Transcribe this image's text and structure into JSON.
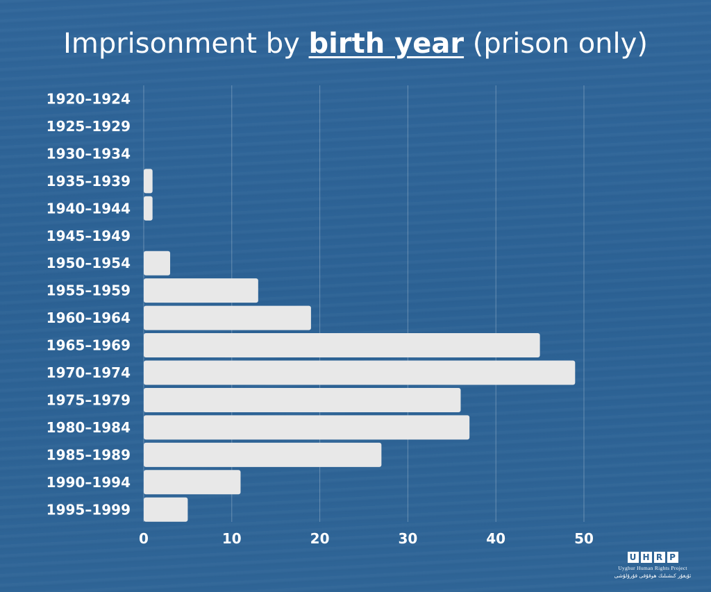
{
  "title": {
    "before": "Imprisonment by ",
    "emphasis": "birth year",
    "after": " (prison only)"
  },
  "chart_data": {
    "type": "bar",
    "orientation": "horizontal",
    "categories": [
      "1920–1924",
      "1925–1929",
      "1930–1934",
      "1935–1939",
      "1940–1944",
      "1945–1949",
      "1950–1954",
      "1955–1959",
      "1960–1964",
      "1965–1969",
      "1970–1974",
      "1975–1979",
      "1980–1984",
      "1985–1989",
      "1990–1994",
      "1995–1999"
    ],
    "values": [
      0,
      0,
      0,
      1,
      1,
      0,
      3,
      13,
      19,
      45,
      49,
      36,
      37,
      27,
      11,
      5
    ],
    "xlim": [
      0,
      50
    ],
    "xticks": [
      "0",
      "10",
      "20",
      "30",
      "40",
      "50"
    ],
    "xlabel": "",
    "ylabel": "",
    "grid": "vertical",
    "bar_color": "#e8e8e8",
    "background_color": "#2e6497"
  },
  "logo": {
    "letters": [
      "U",
      "H",
      "R",
      "P"
    ],
    "name": "Uyghur Human Rights Project",
    "name_uyghur": "ئۇيغۇر كىشىلىك ھوقۇقى قۇرۇلۇشى"
  }
}
